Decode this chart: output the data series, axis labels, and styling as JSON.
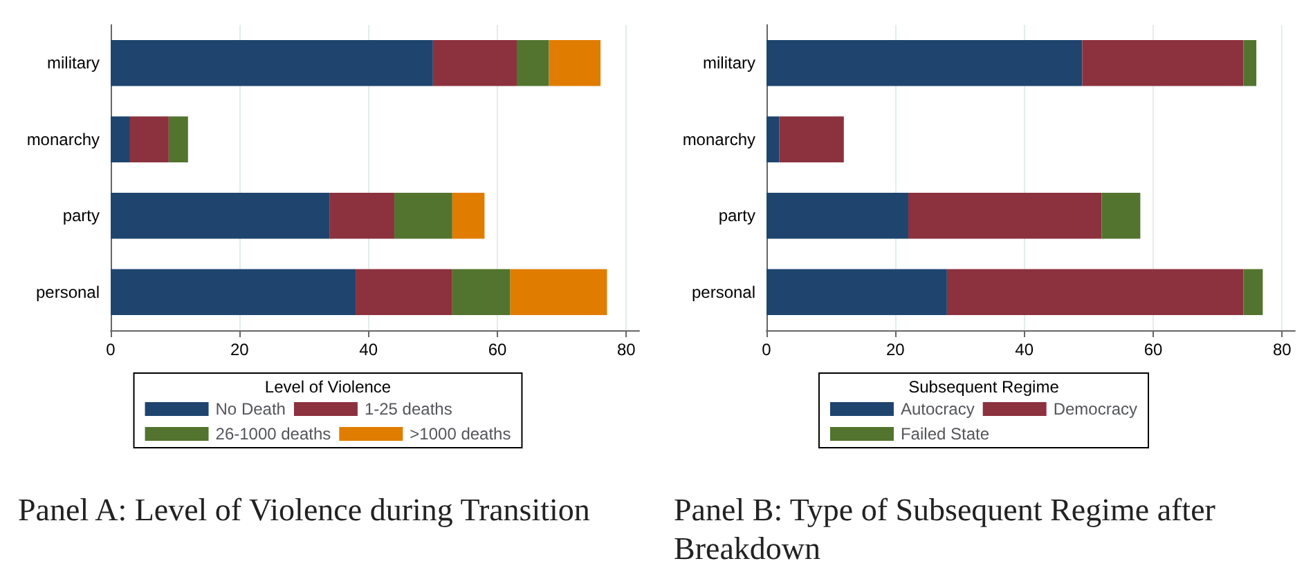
{
  "chart_data": [
    {
      "type": "bar",
      "orientation": "horizontal",
      "stacked": true,
      "title": "Panel A: Level of Violence during Transition",
      "legend_title": "Level of Violence",
      "legend": "bottom",
      "grid": "x",
      "categories": [
        "military",
        "monarchy",
        "party",
        "personal"
      ],
      "xlim": [
        0,
        82
      ],
      "xticks": [
        0,
        20,
        40,
        60,
        80
      ],
      "series": [
        {
          "name": "No Death",
          "color": "#1f456e",
          "values": [
            50,
            3,
            34,
            38
          ]
        },
        {
          "name": "1-25 deaths",
          "color": "#8c313e",
          "values": [
            13,
            6,
            10,
            15
          ]
        },
        {
          "name": "26-1000 deaths",
          "color": "#52742f",
          "values": [
            5,
            3,
            9,
            9
          ]
        },
        {
          "name": ">1000 deaths",
          "color": "#e07c00",
          "values": [
            8,
            0,
            5,
            15
          ]
        }
      ]
    },
    {
      "type": "bar",
      "orientation": "horizontal",
      "stacked": true,
      "title": "Panel B: Type of Subsequent Regime after Breakdown",
      "legend_title": "Subsequent Regime",
      "legend": "bottom",
      "grid": "x",
      "categories": [
        "military",
        "monarchy",
        "party",
        "personal"
      ],
      "xlim": [
        0,
        82
      ],
      "xticks": [
        0,
        20,
        40,
        60,
        80
      ],
      "series": [
        {
          "name": "Autocracy",
          "color": "#1f456e",
          "values": [
            49,
            2,
            22,
            28
          ]
        },
        {
          "name": "Democracy",
          "color": "#8c313e",
          "values": [
            25,
            10,
            30,
            46
          ]
        },
        {
          "name": "Failed State",
          "color": "#52742f",
          "values": [
            2,
            0,
            6,
            3
          ]
        }
      ]
    }
  ]
}
